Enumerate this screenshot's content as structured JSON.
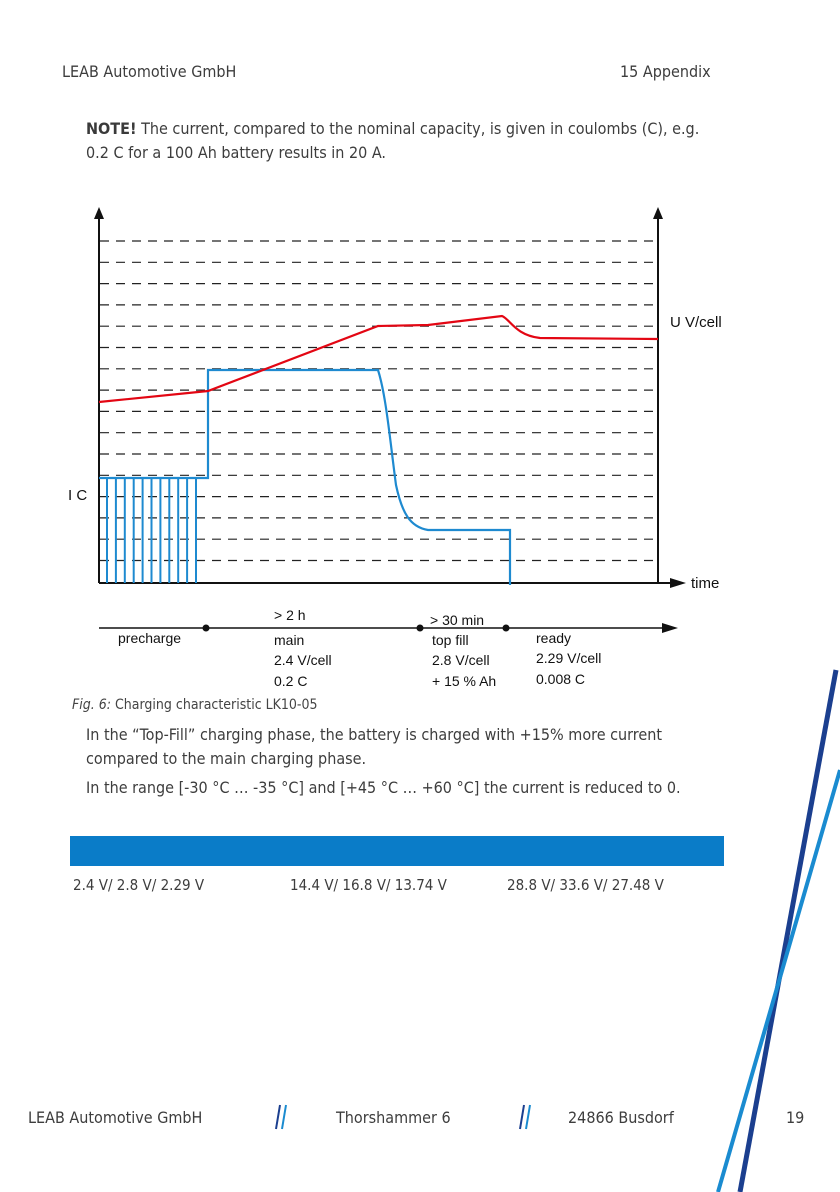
{
  "header": {
    "left": "LEAB Automotive GmbH",
    "right": "15 Appendix"
  },
  "note": {
    "label": "NOTE!",
    "text": " The current, compared to the nominal capacity, is given in coulombs (C), e.g. 0.2 C for a 100 Ah battery results in 20 A."
  },
  "chart_data": {
    "type": "line",
    "title": "",
    "ylabel_left": "I  C",
    "ylabel_right": "U V/cell",
    "xlabel": "time",
    "grid": true,
    "phases": [
      {
        "duration": "",
        "name": "precharge",
        "voltage": "",
        "current": ""
      },
      {
        "duration": "> 2 h",
        "name": "main",
        "voltage": "2.4 V/cell",
        "current": "0.2 C"
      },
      {
        "duration": "> 30 min",
        "name": "top fill",
        "voltage": "2.8 V/cell",
        "current": "+ 15 % Ah"
      },
      {
        "duration": "",
        "name": "ready",
        "voltage": "2.29 V/cell",
        "current": "0.008 C"
      }
    ],
    "colors": {
      "voltage": "#e30613",
      "current": "#1e8ad0",
      "grid": "#222222"
    }
  },
  "figure": {
    "label": "Fig. 6:",
    "caption": " Charging characteristic LK10-05"
  },
  "para1": "In the “Top-Fill” charging phase, the battery is charged with +15% more current compared to the main charging phase.",
  "para2": "In the range [-30 °C … -35 °C] and [+45 °C … +60 °C] the current is reduced to 0.",
  "table": {
    "row": [
      "2.4 V/ 2.8 V/ 2.29 V",
      "14.4 V/ 16.8 V/ 13.74 V",
      "28.8 V/ 33.6 V/ 27.48 V"
    ]
  },
  "footer": {
    "company": "LEAB Automotive GmbH",
    "street": "Thorshammer 6",
    "city": "24866 Busdorf",
    "page": "19"
  }
}
